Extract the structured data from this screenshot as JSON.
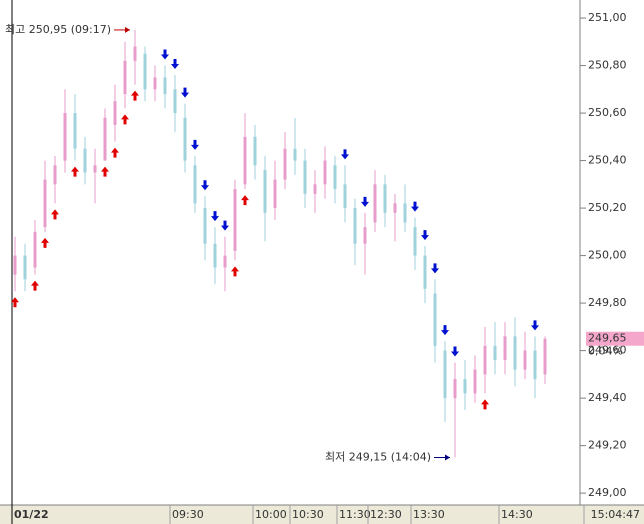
{
  "chart_data": {
    "type": "candlestick",
    "up_color": "#e89ccb",
    "down_color": "#9fd2dc",
    "buy_color": "#e00000",
    "sell_color": "#0010d0",
    "ohlc": [
      [
        249.92,
        250.08,
        249.85,
        250.0
      ],
      [
        250.0,
        250.05,
        249.85,
        249.9
      ],
      [
        249.95,
        250.15,
        249.92,
        250.1
      ],
      [
        250.12,
        250.4,
        250.1,
        250.32
      ],
      [
        250.3,
        250.42,
        250.22,
        250.38
      ],
      [
        250.4,
        250.7,
        250.35,
        250.6
      ],
      [
        250.6,
        250.68,
        250.4,
        250.45
      ],
      [
        250.45,
        250.5,
        250.3,
        250.35
      ],
      [
        250.35,
        250.45,
        250.22,
        250.38
      ],
      [
        250.4,
        250.62,
        250.4,
        250.58
      ],
      [
        250.55,
        250.72,
        250.48,
        250.65
      ],
      [
        250.68,
        250.9,
        250.62,
        250.82
      ],
      [
        250.82,
        250.95,
        250.72,
        250.88
      ],
      [
        250.85,
        250.88,
        250.65,
        250.7
      ],
      [
        250.7,
        250.8,
        250.65,
        250.75
      ],
      [
        250.75,
        250.8,
        250.62,
        250.68
      ],
      [
        250.7,
        250.76,
        250.52,
        250.6
      ],
      [
        250.58,
        250.64,
        250.35,
        250.4
      ],
      [
        250.38,
        250.42,
        250.18,
        250.22
      ],
      [
        250.2,
        250.25,
        249.98,
        250.05
      ],
      [
        250.05,
        250.12,
        249.88,
        249.95
      ],
      [
        249.95,
        250.08,
        249.85,
        250.0
      ],
      [
        250.02,
        250.32,
        249.98,
        250.28
      ],
      [
        250.3,
        250.6,
        250.28,
        250.5
      ],
      [
        250.5,
        250.55,
        250.32,
        250.38
      ],
      [
        250.36,
        250.42,
        250.06,
        250.18
      ],
      [
        250.2,
        250.4,
        250.15,
        250.32
      ],
      [
        250.32,
        250.52,
        250.28,
        250.45
      ],
      [
        250.45,
        250.58,
        250.34,
        250.4
      ],
      [
        250.4,
        250.45,
        250.2,
        250.26
      ],
      [
        250.26,
        250.36,
        250.18,
        250.3
      ],
      [
        250.3,
        250.46,
        250.24,
        250.4
      ],
      [
        250.38,
        250.42,
        250.22,
        250.28
      ],
      [
        250.3,
        250.38,
        250.14,
        250.2
      ],
      [
        250.2,
        250.24,
        249.96,
        250.05
      ],
      [
        250.05,
        250.18,
        249.92,
        250.12
      ],
      [
        250.14,
        250.36,
        250.1,
        250.3
      ],
      [
        250.3,
        250.34,
        250.12,
        250.18
      ],
      [
        250.18,
        250.26,
        250.06,
        250.22
      ],
      [
        250.22,
        250.3,
        250.1,
        250.14
      ],
      [
        250.12,
        250.16,
        249.94,
        250.0
      ],
      [
        250.0,
        250.04,
        249.8,
        249.86
      ],
      [
        249.84,
        249.9,
        249.55,
        249.62
      ],
      [
        249.6,
        249.64,
        249.3,
        249.4
      ],
      [
        249.4,
        249.55,
        249.15,
        249.48
      ],
      [
        249.48,
        249.56,
        249.35,
        249.42
      ],
      [
        249.42,
        249.58,
        249.38,
        249.52
      ],
      [
        249.5,
        249.7,
        249.42,
        249.62
      ],
      [
        249.62,
        249.72,
        249.5,
        249.56
      ],
      [
        249.56,
        249.72,
        249.5,
        249.66
      ],
      [
        249.66,
        249.74,
        249.45,
        249.52
      ],
      [
        249.52,
        249.68,
        249.48,
        249.6
      ],
      [
        249.6,
        249.66,
        249.4,
        249.48
      ],
      [
        249.5,
        249.66,
        249.46,
        249.65
      ]
    ],
    "buy_signals": [
      0,
      2,
      3,
      4,
      6,
      9,
      10,
      11,
      12,
      22,
      23,
      47
    ],
    "sell_signals": [
      15,
      16,
      17,
      18,
      19,
      20,
      21,
      33,
      35,
      40,
      41,
      42,
      43,
      44,
      52
    ],
    "xlim": [
      -0.3,
      56.5
    ],
    "xticks": [
      {
        "value": -0.3,
        "label": "01/22"
      },
      {
        "value": 15.5,
        "label": "09:30"
      },
      {
        "value": 23.8,
        "label": "10:00"
      },
      {
        "value": 27.5,
        "label": "10:30"
      },
      {
        "value": 32.2,
        "label": "11:30"
      },
      {
        "value": 35.3,
        "label": "12:30"
      },
      {
        "value": 39.6,
        "label": "13:30"
      },
      {
        "value": 48.4,
        "label": "14:30"
      }
    ],
    "time_label": "15:04:47",
    "ylim": [
      248.95,
      251.076
    ],
    "yticks": [
      {
        "value": 249.0,
        "label": "249,00"
      },
      {
        "value": 249.2,
        "label": "249,20"
      },
      {
        "value": 249.4,
        "label": "249,40"
      },
      {
        "value": 249.6,
        "label": "249,60"
      },
      {
        "value": 249.8,
        "label": "249,80"
      },
      {
        "value": 250.0,
        "label": "250,00"
      },
      {
        "value": 250.2,
        "label": "250,20"
      },
      {
        "value": 250.4,
        "label": "250,40"
      },
      {
        "value": 250.6,
        "label": "250,60"
      },
      {
        "value": 250.8,
        "label": "250,80"
      },
      {
        "value": 251.0,
        "label": "251,00"
      }
    ],
    "last_price": {
      "value": 249.65,
      "label": "249,65"
    },
    "change_label": "0,04%",
    "annotations": [
      {
        "text": "최고 250,95 (09:17)",
        "value": 250.95,
        "bar": 12,
        "color": "#c00000"
      },
      {
        "text": "최저 249,15 (14:04)",
        "value": 249.15,
        "bar": 44,
        "color": "#000080"
      }
    ]
  }
}
